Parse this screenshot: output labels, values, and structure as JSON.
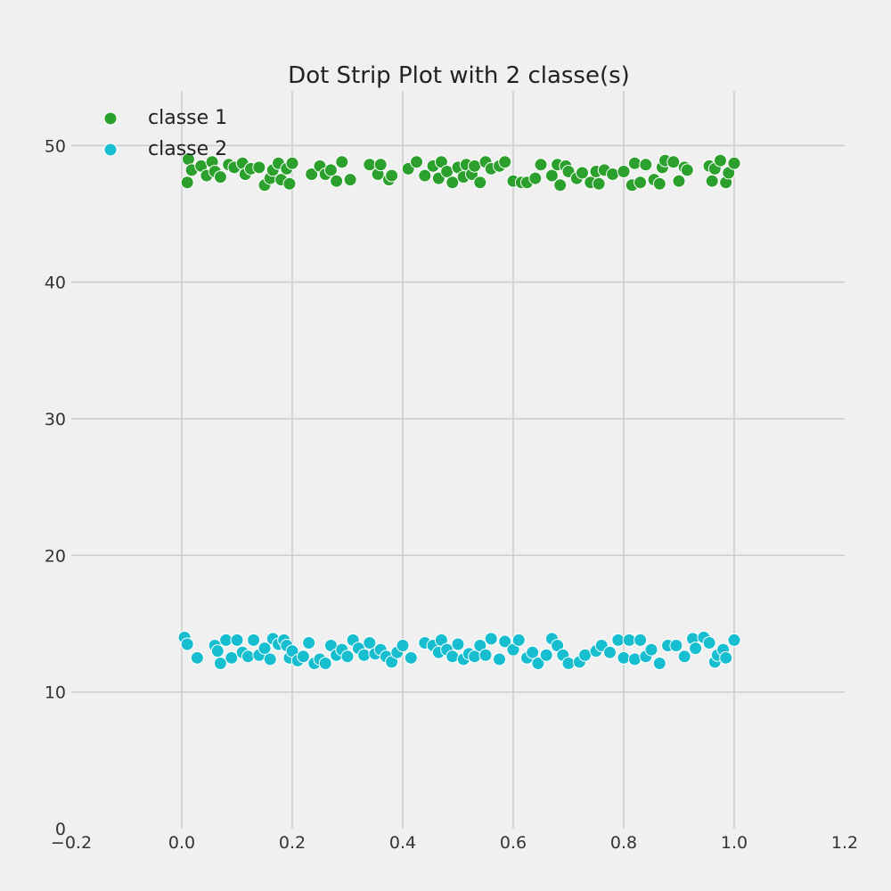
{
  "chart_data": {
    "type": "scatter",
    "title": "Dot Strip Plot with 2 classe(s)",
    "xlabel": "",
    "ylabel": "",
    "xlim": [
      -0.2,
      1.2
    ],
    "ylim": [
      0,
      54
    ],
    "xticks": [
      -0.2,
      0.0,
      0.2,
      0.4,
      0.6,
      0.8,
      1.0,
      1.2
    ],
    "xtick_labels": [
      "−0.2",
      "0.0",
      "0.2",
      "0.4",
      "0.6",
      "0.8",
      "1.0",
      "1.2"
    ],
    "yticks": [
      0,
      10,
      20,
      30,
      40,
      50
    ],
    "ytick_labels": [
      "0",
      "10",
      "20",
      "30",
      "40",
      "50"
    ],
    "grid": true,
    "legend_position": "top-left",
    "series": [
      {
        "name": "classe 1",
        "color": "#2ca02c",
        "points": [
          [
            0.01,
            47.3
          ],
          [
            0.012,
            49.0
          ],
          [
            0.018,
            48.2
          ],
          [
            0.035,
            48.5
          ],
          [
            0.045,
            47.8
          ],
          [
            0.055,
            48.8
          ],
          [
            0.06,
            48.1
          ],
          [
            0.07,
            47.7
          ],
          [
            0.085,
            48.6
          ],
          [
            0.095,
            48.4
          ],
          [
            0.11,
            48.7
          ],
          [
            0.115,
            47.9
          ],
          [
            0.125,
            48.3
          ],
          [
            0.14,
            48.4
          ],
          [
            0.15,
            47.1
          ],
          [
            0.16,
            47.6
          ],
          [
            0.165,
            48.2
          ],
          [
            0.175,
            48.7
          ],
          [
            0.18,
            47.5
          ],
          [
            0.19,
            48.3
          ],
          [
            0.195,
            47.2
          ],
          [
            0.2,
            48.7
          ],
          [
            0.235,
            47.9
          ],
          [
            0.25,
            48.5
          ],
          [
            0.26,
            47.9
          ],
          [
            0.27,
            48.2
          ],
          [
            0.28,
            47.4
          ],
          [
            0.29,
            48.8
          ],
          [
            0.305,
            47.5
          ],
          [
            0.34,
            48.6
          ],
          [
            0.355,
            47.9
          ],
          [
            0.36,
            48.6
          ],
          [
            0.375,
            47.5
          ],
          [
            0.38,
            47.8
          ],
          [
            0.41,
            48.3
          ],
          [
            0.425,
            48.8
          ],
          [
            0.44,
            47.8
          ],
          [
            0.455,
            48.5
          ],
          [
            0.465,
            47.6
          ],
          [
            0.47,
            48.8
          ],
          [
            0.48,
            48.1
          ],
          [
            0.49,
            47.3
          ],
          [
            0.5,
            48.4
          ],
          [
            0.51,
            47.7
          ],
          [
            0.515,
            48.6
          ],
          [
            0.525,
            47.9
          ],
          [
            0.53,
            48.5
          ],
          [
            0.54,
            47.3
          ],
          [
            0.55,
            48.8
          ],
          [
            0.56,
            48.3
          ],
          [
            0.575,
            48.5
          ],
          [
            0.585,
            48.8
          ],
          [
            0.6,
            47.4
          ],
          [
            0.615,
            47.3
          ],
          [
            0.625,
            47.3
          ],
          [
            0.64,
            47.6
          ],
          [
            0.65,
            48.6
          ],
          [
            0.67,
            47.8
          ],
          [
            0.68,
            48.6
          ],
          [
            0.685,
            47.1
          ],
          [
            0.695,
            48.5
          ],
          [
            0.7,
            48.1
          ],
          [
            0.715,
            47.6
          ],
          [
            0.725,
            48.0
          ],
          [
            0.74,
            47.3
          ],
          [
            0.75,
            48.1
          ],
          [
            0.755,
            47.2
          ],
          [
            0.765,
            48.2
          ],
          [
            0.78,
            47.9
          ],
          [
            0.8,
            48.1
          ],
          [
            0.815,
            47.1
          ],
          [
            0.82,
            48.7
          ],
          [
            0.83,
            47.3
          ],
          [
            0.84,
            48.6
          ],
          [
            0.855,
            47.5
          ],
          [
            0.865,
            47.2
          ],
          [
            0.87,
            48.4
          ],
          [
            0.875,
            48.9
          ],
          [
            0.89,
            48.8
          ],
          [
            0.9,
            47.4
          ],
          [
            0.91,
            48.4
          ],
          [
            0.915,
            48.2
          ],
          [
            0.955,
            48.5
          ],
          [
            0.96,
            47.4
          ],
          [
            0.965,
            48.3
          ],
          [
            0.975,
            48.9
          ],
          [
            0.985,
            47.3
          ],
          [
            0.99,
            48.0
          ],
          [
            1.0,
            48.7
          ]
        ]
      },
      {
        "name": "classe 2",
        "color": "#17becf",
        "points": [
          [
            0.005,
            14.0
          ],
          [
            0.01,
            13.5
          ],
          [
            0.028,
            12.5
          ],
          [
            0.06,
            13.4
          ],
          [
            0.065,
            13.0
          ],
          [
            0.07,
            12.1
          ],
          [
            0.08,
            13.8
          ],
          [
            0.09,
            12.5
          ],
          [
            0.1,
            13.8
          ],
          [
            0.11,
            12.9
          ],
          [
            0.12,
            12.6
          ],
          [
            0.13,
            13.8
          ],
          [
            0.14,
            12.7
          ],
          [
            0.15,
            13.2
          ],
          [
            0.16,
            12.4
          ],
          [
            0.165,
            13.9
          ],
          [
            0.175,
            13.5
          ],
          [
            0.185,
            13.8
          ],
          [
            0.19,
            13.4
          ],
          [
            0.195,
            12.5
          ],
          [
            0.2,
            13.0
          ],
          [
            0.21,
            12.3
          ],
          [
            0.22,
            12.6
          ],
          [
            0.23,
            13.6
          ],
          [
            0.24,
            12.1
          ],
          [
            0.25,
            12.4
          ],
          [
            0.26,
            12.1
          ],
          [
            0.27,
            13.4
          ],
          [
            0.28,
            12.7
          ],
          [
            0.29,
            13.1
          ],
          [
            0.3,
            12.6
          ],
          [
            0.31,
            13.8
          ],
          [
            0.32,
            13.2
          ],
          [
            0.33,
            12.7
          ],
          [
            0.34,
            13.6
          ],
          [
            0.35,
            12.8
          ],
          [
            0.36,
            13.1
          ],
          [
            0.37,
            12.6
          ],
          [
            0.38,
            12.2
          ],
          [
            0.39,
            12.9
          ],
          [
            0.4,
            13.4
          ],
          [
            0.415,
            12.5
          ],
          [
            0.44,
            13.6
          ],
          [
            0.455,
            13.4
          ],
          [
            0.465,
            12.9
          ],
          [
            0.47,
            13.8
          ],
          [
            0.48,
            13.1
          ],
          [
            0.49,
            12.6
          ],
          [
            0.5,
            13.5
          ],
          [
            0.51,
            12.4
          ],
          [
            0.52,
            12.8
          ],
          [
            0.53,
            12.6
          ],
          [
            0.54,
            13.4
          ],
          [
            0.55,
            12.7
          ],
          [
            0.56,
            13.9
          ],
          [
            0.575,
            12.4
          ],
          [
            0.585,
            13.7
          ],
          [
            0.6,
            13.1
          ],
          [
            0.61,
            13.8
          ],
          [
            0.625,
            12.5
          ],
          [
            0.635,
            12.9
          ],
          [
            0.645,
            12.1
          ],
          [
            0.66,
            12.7
          ],
          [
            0.67,
            13.9
          ],
          [
            0.68,
            13.4
          ],
          [
            0.69,
            12.7
          ],
          [
            0.7,
            12.1
          ],
          [
            0.72,
            12.2
          ],
          [
            0.73,
            12.7
          ],
          [
            0.75,
            13.0
          ],
          [
            0.76,
            13.4
          ],
          [
            0.775,
            12.9
          ],
          [
            0.79,
            13.8
          ],
          [
            0.8,
            12.5
          ],
          [
            0.81,
            13.8
          ],
          [
            0.82,
            12.4
          ],
          [
            0.83,
            13.8
          ],
          [
            0.84,
            12.6
          ],
          [
            0.85,
            13.1
          ],
          [
            0.865,
            12.1
          ],
          [
            0.88,
            13.4
          ],
          [
            0.895,
            13.4
          ],
          [
            0.91,
            12.6
          ],
          [
            0.925,
            13.9
          ],
          [
            0.93,
            13.2
          ],
          [
            0.945,
            14.0
          ],
          [
            0.955,
            13.6
          ],
          [
            0.965,
            12.2
          ],
          [
            0.97,
            12.7
          ],
          [
            0.98,
            13.1
          ],
          [
            0.985,
            12.5
          ],
          [
            1.0,
            13.8
          ]
        ]
      }
    ]
  }
}
